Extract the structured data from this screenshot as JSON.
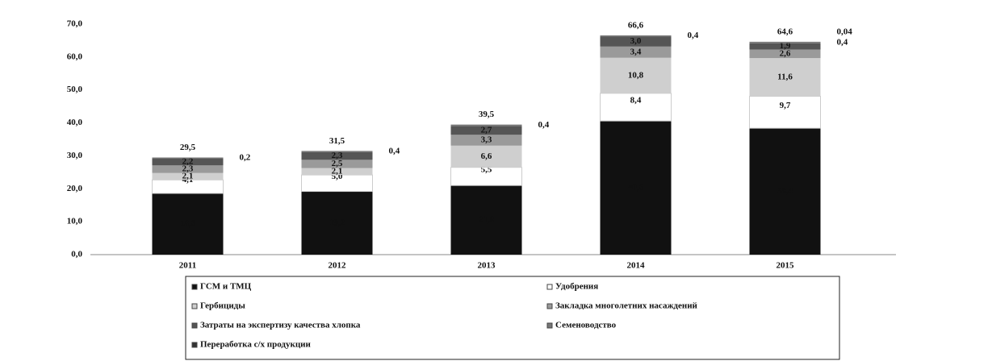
{
  "chart_data": {
    "type": "stacked_bar",
    "categories": [
      "2011",
      "2012",
      "2013",
      "2014",
      "2015"
    ],
    "series": [
      {
        "name": "ГСМ и ТМЦ",
        "color": "#111111",
        "values": [
          18.6,
          19.2,
          21.0,
          40.6,
          38.4
        ],
        "value_labels": [
          "18,6",
          "19,2",
          "21,0",
          "40,6",
          "38,4"
        ]
      },
      {
        "name": "Удобрения",
        "color": "#ffffff",
        "values": [
          4.1,
          5.0,
          5.5,
          8.4,
          9.7
        ],
        "value_labels": [
          "4,1",
          "5,0",
          "5,5",
          "8,4",
          "9,7"
        ]
      },
      {
        "name": "Гербициды",
        "color": "#cfcfcf",
        "values": [
          2.1,
          2.1,
          6.6,
          10.8,
          11.6
        ],
        "value_labels": [
          "2,1",
          "2,1",
          "6,6",
          "10,8",
          "11,6"
        ]
      },
      {
        "name": "Закладка многолетних насаждений",
        "color": "#9a9a9a",
        "values": [
          2.3,
          2.5,
          3.3,
          3.4,
          2.6
        ],
        "value_labels": [
          "2,3",
          "2,5",
          "3,3",
          "3,4",
          "2,6"
        ]
      },
      {
        "name": "Затраты на экспертизу качества хлопка",
        "color": "#555555",
        "values": [
          2.2,
          2.3,
          2.7,
          3.0,
          1.9
        ],
        "value_labels": [
          "2,2",
          "2,3",
          "2,7",
          "3,0",
          "1,9"
        ]
      },
      {
        "name": "Семеноводство",
        "color": "#777777",
        "values": [
          0.2,
          0.4,
          0.4,
          0.4,
          0.4
        ],
        "value_labels": [
          "0,2",
          "0,4",
          "0,4",
          "0,4",
          "0,4"
        ]
      },
      {
        "name": "Переработка с/х продукции",
        "color": "#333333",
        "values": [
          null,
          null,
          null,
          null,
          0.04
        ],
        "value_labels": [
          null,
          null,
          null,
          null,
          "0,04"
        ]
      }
    ],
    "totals": [
      29.5,
      31.5,
      39.5,
      66.6,
      64.6
    ],
    "totals_labels": [
      "29,5",
      "31,5",
      "39,5",
      "66,6",
      "64,6"
    ],
    "ylim": [
      0,
      70
    ],
    "yticks": [
      {
        "value": 0,
        "label": "0,0"
      },
      {
        "value": 10,
        "label": "10,0"
      },
      {
        "value": 20,
        "label": "20,0"
      },
      {
        "value": 30,
        "label": "30,0"
      },
      {
        "value": 40,
        "label": "40,0"
      },
      {
        "value": 50,
        "label": "50,0"
      },
      {
        "value": 60,
        "label": "60,0"
      },
      {
        "value": 70,
        "label": "70,0"
      }
    ],
    "grid": false
  }
}
